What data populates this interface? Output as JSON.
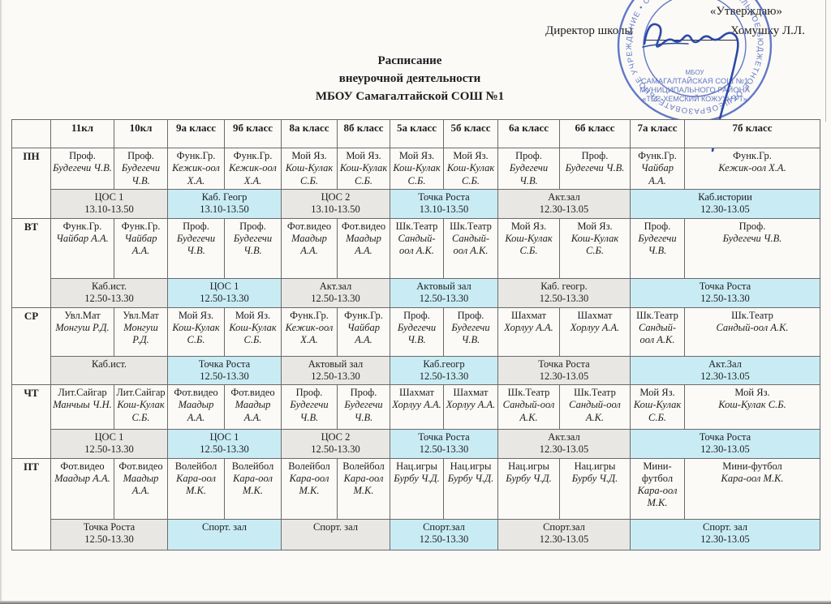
{
  "approval": {
    "approve_text": "«Утверждаю»",
    "director_label": "Директор школы",
    "director_name": "Хомушку Л.Л."
  },
  "stamp": {
    "color": "#3d58bb",
    "ring_text": "МУНИЦИПАЛЬНОЕ БЮДЖЕТНОЕ ОБЩЕОБРАЗОВАТЕЛЬНОЕ УЧРЕЖДЕНИЕ • САМАГАЛТАЙСКАЯ СОШ №1 •",
    "center_line1": "МБОУ",
    "center_line2": "САМАГАЛТАЙСКАЯ СОШ №1",
    "center_line3": "МУНИЦИПАЛЬНОГО РАЙОНА",
    "center_line4": "«ТЕС-ХЕМСКИЙ КОЖУУН РТ»"
  },
  "title": {
    "line1": "Расписание",
    "line2": "внеурочной деятельности",
    "line3": "МБОУ Самагалтайской СОШ №1"
  },
  "table": {
    "columns": [
      "",
      "11кл",
      "10кл",
      "9а класс",
      "9б класс",
      "8а класс",
      "8б класс",
      "5а класс",
      "5б класс",
      "6а класс",
      "6б класс",
      "7а класс",
      "7б класс"
    ],
    "colors": {
      "gray": "#e9e7e4",
      "cyan": "#c9ecf4"
    },
    "days": [
      {
        "day": "ПН",
        "activities": [
          {
            "subject": "Проф.",
            "teacher": "Будегечи Ч.В."
          },
          {
            "subject": "Проф.",
            "teacher": "Будегечи Ч.В."
          },
          {
            "subject": "Функ.Гр.",
            "teacher": "Кежик-оол Х.А."
          },
          {
            "subject": "Функ.Гр.",
            "teacher": "Кежик-оол Х.А."
          },
          {
            "subject": "Мой Яз.",
            "teacher": "Кош-Кулак С.Б."
          },
          {
            "subject": "Мой Яз.",
            "teacher": "Кош-Кулак С.Б."
          },
          {
            "subject": "Мой Яз.",
            "teacher": "Кош-Кулак С.Б."
          },
          {
            "subject": "Мой Яз.",
            "teacher": "Кош-Кулак С.Б."
          },
          {
            "subject": "Проф.",
            "teacher": "Будегечи Ч.В."
          },
          {
            "subject": "Проф.",
            "teacher": "Будегечи Ч.В."
          },
          {
            "subject": "Функ.Гр.",
            "teacher": "Чайбар А.А."
          },
          {
            "subject": "Функ.Гр.",
            "teacher": "Кежик-оол Х.А."
          }
        ],
        "locations": [
          {
            "place": "ЦОС 1",
            "time": "13.10-13.50",
            "shade": "gray"
          },
          {
            "place": "Каб. Геогр",
            "time": "13.10-13.50",
            "shade": "cyan"
          },
          {
            "place": "ЦОС 2",
            "time": "13.10-13.50",
            "shade": "gray"
          },
          {
            "place": "Точка Роста",
            "time": "13.10-13.50",
            "shade": "cyan"
          },
          {
            "place": "Акт.зал",
            "time": "12.30-13.05",
            "shade": "gray"
          },
          {
            "place": "Каб.истории",
            "time": "12.30-13.05",
            "shade": "cyan"
          }
        ]
      },
      {
        "day": "ВТ",
        "activities": [
          {
            "subject": "Функ.Гр.",
            "teacher": "Чайбар А.А."
          },
          {
            "subject": "Функ.Гр.",
            "teacher": "Чайбар А.А."
          },
          {
            "subject": "Проф.",
            "teacher": "Будегечи Ч.В."
          },
          {
            "subject": "Проф.",
            "teacher": "Будегечи Ч.В."
          },
          {
            "subject": "Фот.видео",
            "teacher": "Маадыр А.А."
          },
          {
            "subject": "Фот.видео",
            "teacher": "Маадыр А.А."
          },
          {
            "subject": "Шк.Театр",
            "teacher": "Сандый-оол А.К."
          },
          {
            "subject": "Шк.Театр",
            "teacher": "Сандый-оол А.К."
          },
          {
            "subject": "Мой Яз.",
            "teacher": "Кош-Кулак С.Б."
          },
          {
            "subject": "Мой Яз.",
            "teacher": "Кош-Кулак С.Б."
          },
          {
            "subject": "Проф.",
            "teacher": "Будегечи Ч.В."
          },
          {
            "subject": "Проф.",
            "teacher": "Будегечи Ч.В."
          }
        ],
        "locations": [
          {
            "place": "Каб.ист.",
            "time": "12.50-13.30",
            "shade": "gray"
          },
          {
            "place": "ЦОС 1",
            "time": "12.50-13.30",
            "shade": "cyan"
          },
          {
            "place": "Акт.зал",
            "time": "12.50-13.30",
            "shade": "gray"
          },
          {
            "place": "Актовый зал",
            "time": "12.50-13.30",
            "shade": "cyan"
          },
          {
            "place": "Каб. геогр.",
            "time": "12.50-13.30",
            "shade": "gray"
          },
          {
            "place": "Точка Роста",
            "time": "12.50-13.30",
            "shade": "cyan"
          }
        ]
      },
      {
        "day": "СР",
        "activities": [
          {
            "subject": "Увл.Мат",
            "teacher": "Монгуш Р.Д."
          },
          {
            "subject": "Увл.Мат",
            "teacher": "Монгуш Р.Д."
          },
          {
            "subject": "Мой Яз.",
            "teacher": "Кош-Кулак С.Б."
          },
          {
            "subject": "Мой Яз.",
            "teacher": "Кош-Кулак С.Б."
          },
          {
            "subject": "Функ.Гр.",
            "teacher": "Кежик-оол Х.А."
          },
          {
            "subject": "Функ.Гр.",
            "teacher": "Чайбар А.А."
          },
          {
            "subject": "Проф.",
            "teacher": "Будегечи Ч.В."
          },
          {
            "subject": "Проф.",
            "teacher": "Будегечи Ч.В."
          },
          {
            "subject": "Шахмат",
            "teacher": "Хорлуу А.А."
          },
          {
            "subject": "Шахмат",
            "teacher": "Хорлуу А.А."
          },
          {
            "subject": "Шк.Театр",
            "teacher": "Сандый-оол А.К."
          },
          {
            "subject": "Шк.Театр",
            "teacher": "Сандый-оол А.К."
          }
        ],
        "locations": [
          {
            "place": "Каб.ист.",
            "time": "",
            "shade": "gray"
          },
          {
            "place": "Точка Роста",
            "time": "12.50-13.30",
            "shade": "cyan"
          },
          {
            "place": "Актовый зал",
            "time": "12.50-13.30",
            "shade": "gray"
          },
          {
            "place": "Каб.геогр",
            "time": "12.50-13.30",
            "shade": "cyan"
          },
          {
            "place": "Точка Роста",
            "time": "12.30-13.05",
            "shade": "gray"
          },
          {
            "place": "Акт.Зал",
            "time": "12.30-13.05",
            "shade": "cyan"
          }
        ]
      },
      {
        "day": "ЧТ",
        "activities": [
          {
            "subject": "Лит.Сайгар",
            "teacher": "Манчыы Ч.Н."
          },
          {
            "subject": "Лит.Сайгар",
            "teacher": "Кош-Кулак С.Б."
          },
          {
            "subject": "Фот.видео",
            "teacher": "Маадыр А.А."
          },
          {
            "subject": "Фот.видео",
            "teacher": "Маадыр А.А."
          },
          {
            "subject": "Проф.",
            "teacher": "Будегечи Ч.В."
          },
          {
            "subject": "Проф.",
            "teacher": "Будегечи Ч.В."
          },
          {
            "subject": "Шахмат",
            "teacher": "Хорлуу А.А."
          },
          {
            "subject": "Шахмат",
            "teacher": "Хорлуу А.А."
          },
          {
            "subject": "Шк.Театр",
            "teacher": "Сандый-оол А.К."
          },
          {
            "subject": "Шк.Театр",
            "teacher": "Сандый-оол А.К."
          },
          {
            "subject": "Мой Яз.",
            "teacher": "Кош-Кулак С.Б."
          },
          {
            "subject": "Мой Яз.",
            "teacher": "Кош-Кулак С.Б."
          }
        ],
        "locations": [
          {
            "place": "ЦОС 1",
            "time": "12.50-13.30",
            "shade": "gray"
          },
          {
            "place": "ЦОС 1",
            "time": "12.50-13.30",
            "shade": "cyan"
          },
          {
            "place": "ЦОС 2",
            "time": "12.50-13.30",
            "shade": "gray"
          },
          {
            "place": "Точка Роста",
            "time": "12.50-13.30",
            "shade": "cyan"
          },
          {
            "place": "Акт.зал",
            "time": "12.30-13.05",
            "shade": "gray"
          },
          {
            "place": "Точка Роста",
            "time": "12.30-13.05",
            "shade": "cyan"
          }
        ]
      },
      {
        "day": "ПТ",
        "activities": [
          {
            "subject": "Фот.видео",
            "teacher": "Маадыр А.А."
          },
          {
            "subject": "Фот.видео",
            "teacher": "Маадыр А.А."
          },
          {
            "subject": "Волейбол",
            "teacher": "Кара-оол М.К."
          },
          {
            "subject": "Волейбол",
            "teacher": "Кара-оол М.К."
          },
          {
            "subject": "Волейбол",
            "teacher": "Кара-оол М.К."
          },
          {
            "subject": "Волейбол",
            "teacher": "Кара-оол М.К."
          },
          {
            "subject": "Нац.игры",
            "teacher": "Бурбу Ч.Д."
          },
          {
            "subject": "Нац.игры",
            "teacher": "Бурбу Ч.Д."
          },
          {
            "subject": "Нац.игры",
            "teacher": "Бурбу Ч.Д."
          },
          {
            "subject": "Нац.игры",
            "teacher": "Бурбу Ч.Д."
          },
          {
            "subject": "Мини-футбол",
            "teacher": "Кара-оол М.К."
          },
          {
            "subject": "Мини-футбол",
            "teacher": "Кара-оол М.К."
          }
        ],
        "locations": [
          {
            "place": "Точка Роста",
            "time": "12.50-13.30",
            "shade": "gray"
          },
          {
            "place": "Спорт. зал",
            "time": "",
            "shade": "cyan"
          },
          {
            "place": "Спорт. зал",
            "time": "",
            "shade": "gray"
          },
          {
            "place": "Спорт.зал",
            "time": "12.50-13.30",
            "shade": "cyan"
          },
          {
            "place": "Спорт.зал",
            "time": "12.30-13.05",
            "shade": "gray"
          },
          {
            "place": "Спорт. зал",
            "time": "12.30-13.05",
            "shade": "cyan"
          }
        ]
      }
    ]
  }
}
